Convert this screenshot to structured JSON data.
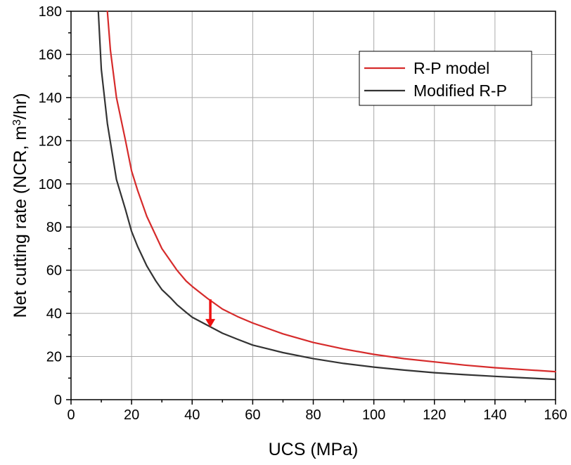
{
  "chart_data": {
    "type": "line",
    "xlabel": "UCS (MPa)",
    "ylabel": "Net cutting rate (NCR, m³/hr)",
    "ylabel_parts": {
      "main": "Net cutting rate (NCR, m",
      "sup": "3",
      "end": "/hr)"
    },
    "xlim": [
      0,
      160
    ],
    "ylim": [
      0,
      180
    ],
    "xticks": [
      0,
      20,
      40,
      60,
      80,
      100,
      120,
      140,
      160
    ],
    "yticks": [
      0,
      20,
      40,
      60,
      80,
      100,
      120,
      140,
      160,
      180
    ],
    "grid": true,
    "legend_position": "top-right",
    "series": [
      {
        "name": "R-P model",
        "color": "#d62b2b",
        "x": [
          12,
          13,
          15,
          18,
          20,
          22,
          25,
          28,
          30,
          33,
          35,
          38,
          40,
          45,
          50,
          55,
          60,
          70,
          80,
          90,
          100,
          110,
          120,
          130,
          140,
          150,
          160
        ],
        "y": [
          180,
          162,
          140,
          120,
          106,
          97,
          85,
          76,
          70,
          64,
          60,
          55,
          52.5,
          47,
          42,
          38.5,
          35.5,
          30.5,
          26.5,
          23.5,
          21,
          19,
          17.5,
          16,
          14.8,
          13.9,
          13
        ]
      },
      {
        "name": "Modified R-P",
        "color": "#333333",
        "x": [
          9,
          10,
          12,
          15,
          18,
          20,
          22,
          25,
          28,
          30,
          33,
          35,
          38,
          40,
          45,
          50,
          55,
          60,
          70,
          80,
          90,
          100,
          110,
          120,
          130,
          140,
          150,
          160
        ],
        "y": [
          180,
          153,
          128,
          102,
          88,
          78,
          71,
          62,
          55,
          51,
          47,
          44,
          40.5,
          38.2,
          34.5,
          30.8,
          28,
          25.3,
          21.8,
          19,
          16.8,
          15.1,
          13.7,
          12.5,
          11.6,
          10.8,
          10.1,
          9.4
        ]
      }
    ],
    "annotations": [
      {
        "type": "arrow",
        "color": "#ee1111",
        "x": 46,
        "y_from": 46.5,
        "y_to": 33.5
      }
    ]
  }
}
